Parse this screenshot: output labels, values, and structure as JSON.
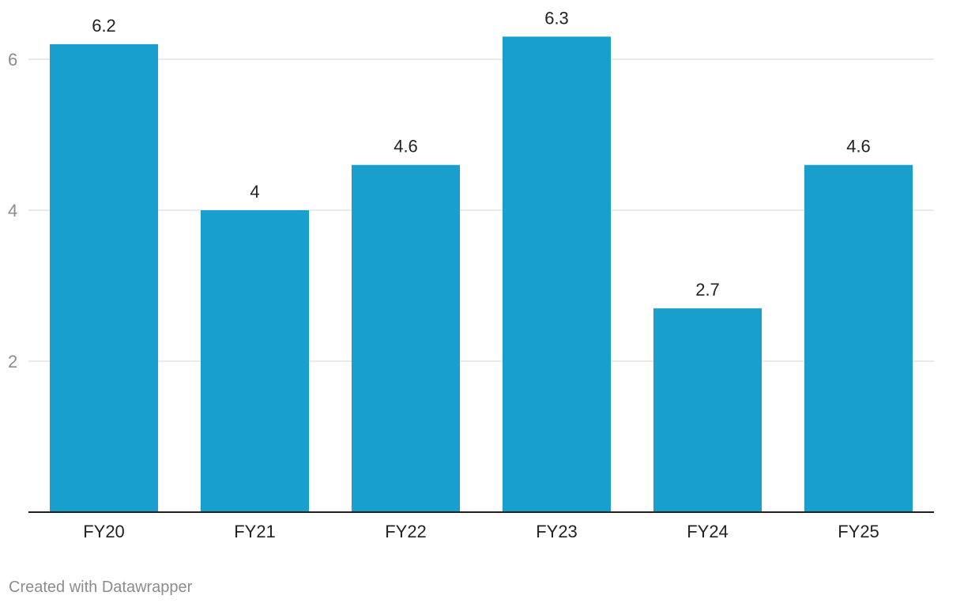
{
  "chart_data": {
    "type": "bar",
    "title": "",
    "xlabel": "",
    "ylabel": "",
    "categories": [
      "FY20",
      "FY21",
      "FY22",
      "FY23",
      "FY24",
      "FY25"
    ],
    "values": [
      6.2,
      4,
      4.6,
      6.3,
      2.7,
      4.6
    ],
    "value_labels": [
      "6.2",
      "4",
      "4.6",
      "6.3",
      "2.7",
      "4.6"
    ],
    "ylim": [
      0,
      6.3
    ],
    "yticks": [
      2,
      4,
      6
    ],
    "ytick_labels": [
      "2",
      "4",
      "6"
    ],
    "grid": true,
    "legend": "none",
    "colors": {
      "bar": "#199fcd",
      "grid": "#e3e3e3",
      "baseline": "#1f1f1f",
      "tick_text": "#8c8c8c",
      "label_text": "#222222"
    }
  },
  "footer": {
    "credit": "Created with Datawrapper"
  }
}
